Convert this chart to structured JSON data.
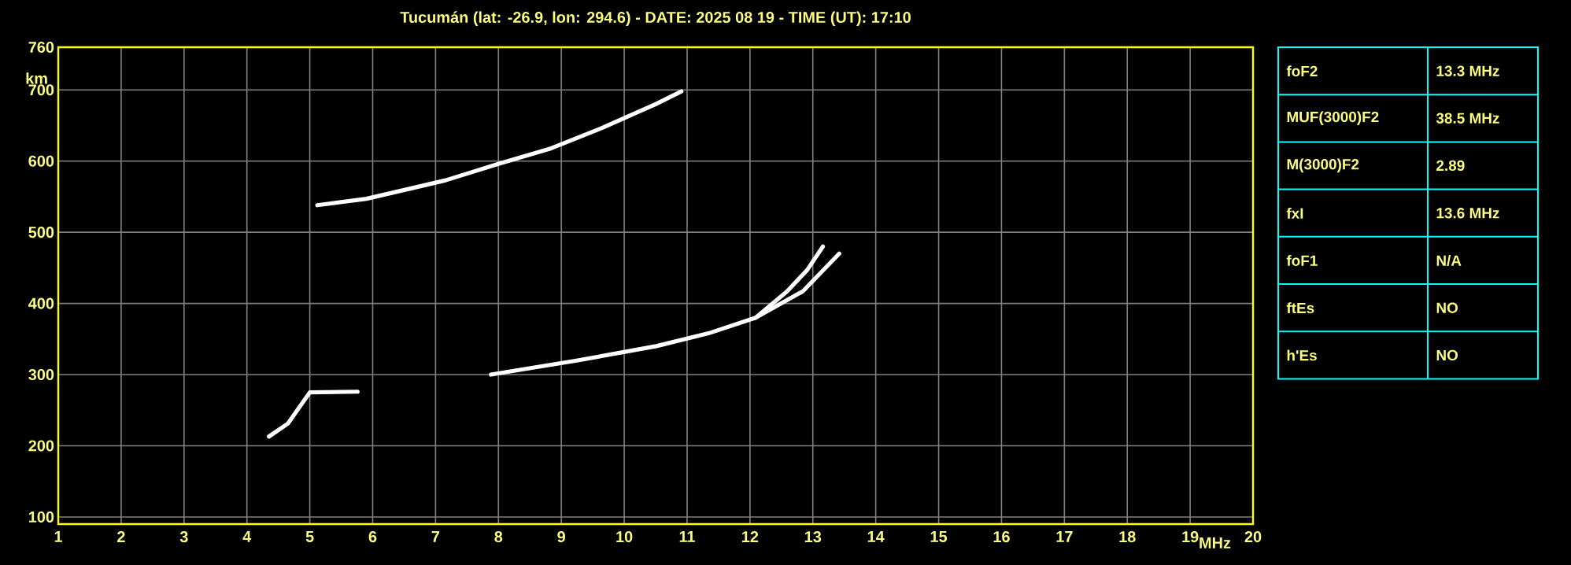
{
  "chart_data": [
    {
      "type": "line",
      "title": "Tucumán (lat: -26.9, lon: 294.6) - DATE: 2025 08 19 - TIME (UT): 17:10",
      "xlabel": "MHz",
      "ylabel": "km",
      "xlim": [
        1,
        20
      ],
      "ylim": [
        90,
        760
      ],
      "xticks": [
        1,
        2,
        3,
        4,
        5,
        6,
        7,
        8,
        9,
        10,
        11,
        12,
        13,
        14,
        15,
        16,
        17,
        18,
        19,
        20
      ],
      "yticks": [
        100,
        200,
        300,
        400,
        500,
        600,
        700,
        760
      ],
      "grid": true,
      "marker": "none",
      "line_style": "solid",
      "series": [
        {
          "color": "#ffffff",
          "x": [
            4.35,
            4.65,
            5.0,
            5.76
          ],
          "values": [
            213,
            231,
            275,
            276
          ]
        },
        {
          "color": "#ffffff",
          "x": [
            7.88,
            9.26,
            10.51,
            11.34,
            12.09,
            12.59,
            12.91,
            13.16
          ],
          "values": [
            300,
            320,
            340,
            358,
            380,
            417,
            447,
            480
          ]
        },
        {
          "color": "#ffffff",
          "x": [
            12.09,
            12.84,
            13.42
          ],
          "values": [
            380,
            417,
            470
          ]
        },
        {
          "color": "#ffffff",
          "x": [
            5.12,
            5.9,
            7.16,
            8.0,
            8.84,
            9.66,
            10.5,
            10.91
          ],
          "values": [
            538,
            547,
            573,
            596,
            618,
            647,
            680,
            698
          ]
        }
      ]
    },
    {
      "type": "other",
      "annotations": [
        "foF2",
        "13.3 MHz",
        "MUF(3000)F2",
        "38.5 MHz",
        "M(3000)F2",
        "2.89",
        "fxI",
        "13.6 MHz",
        "foF1",
        "N/A",
        "ftEs",
        "NO",
        "h'Es",
        "NO"
      ]
    }
  ]
}
